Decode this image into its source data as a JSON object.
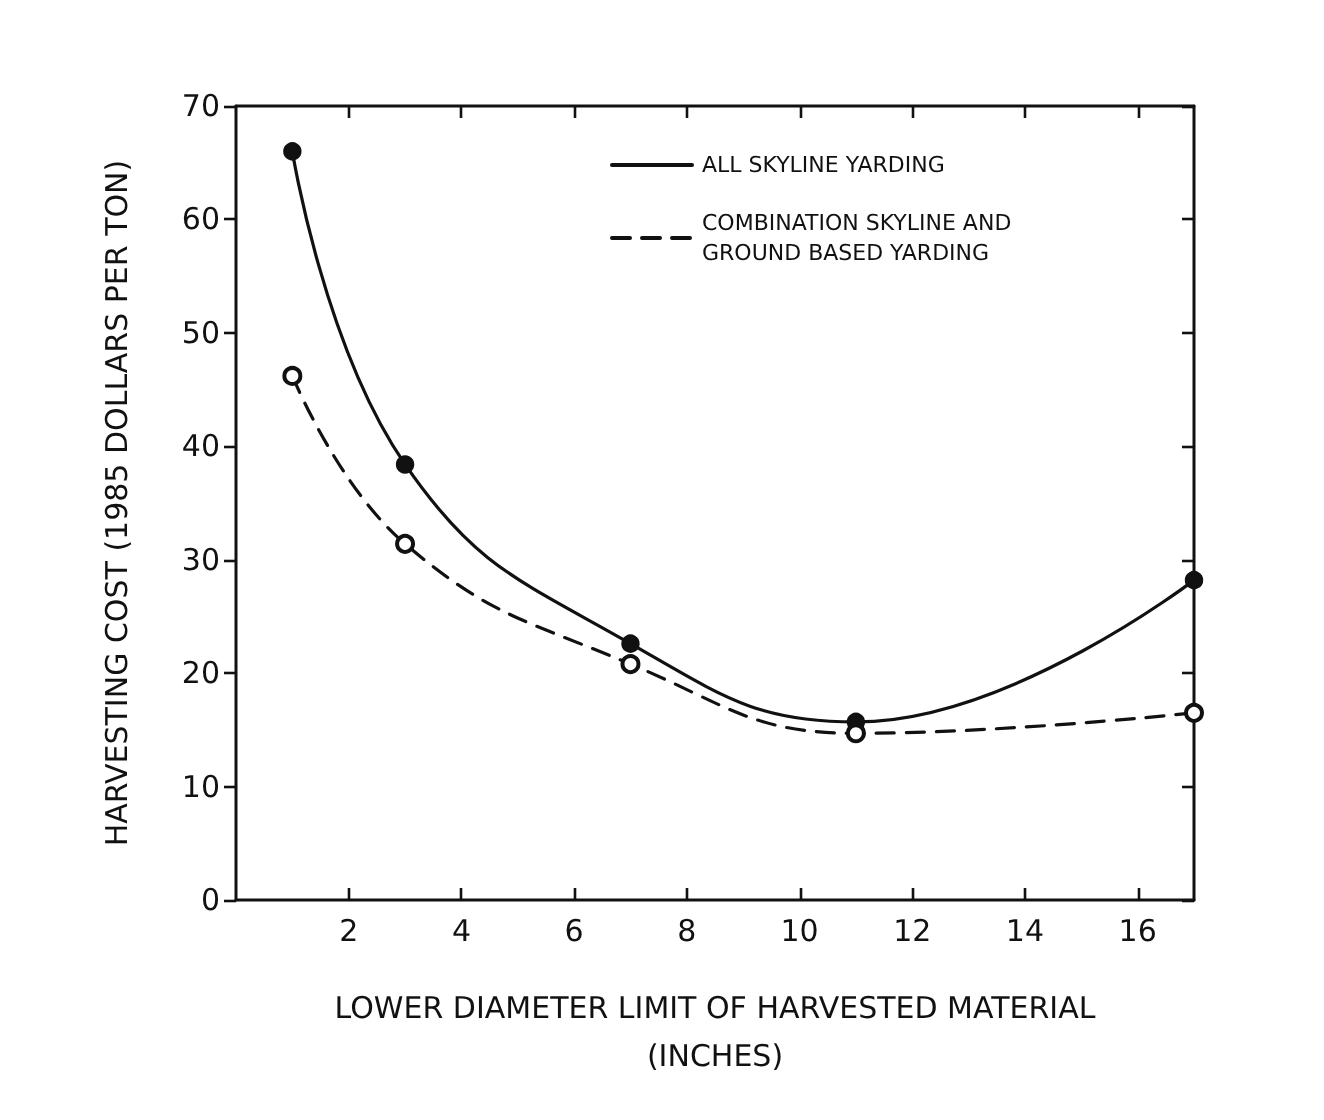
{
  "chart_data": {
    "type": "line",
    "xlabel": "LOWER DIAMETER LIMIT OF HARVESTED MATERIAL\n(INCHES)",
    "ylabel": "HARVESTING COST (1985 DOLLARS PER TON)",
    "x": [
      1,
      3,
      7,
      11,
      17
    ],
    "series": [
      {
        "name": "ALL SKYLINE YARDING",
        "color": "#111111",
        "values": [
          66,
          38.4,
          22.6,
          15.7,
          28.2
        ],
        "line_style": "solid"
      },
      {
        "name": "COMBINATION SKYLINE AND GROUND BASED YARDING",
        "color": "#111111",
        "values": [
          46.2,
          31.4,
          20.8,
          14.7,
          16.5
        ],
        "line_style": "dashed"
      }
    ],
    "xlim": [
      0,
      17
    ],
    "xticks": [
      2,
      4,
      6,
      8,
      10,
      12,
      14,
      16
    ],
    "ylim": [
      0,
      70
    ],
    "yticks": [
      0,
      10,
      20,
      30,
      40,
      50,
      60,
      70
    ],
    "marker": "circle",
    "legend": "top right",
    "grid": false
  }
}
